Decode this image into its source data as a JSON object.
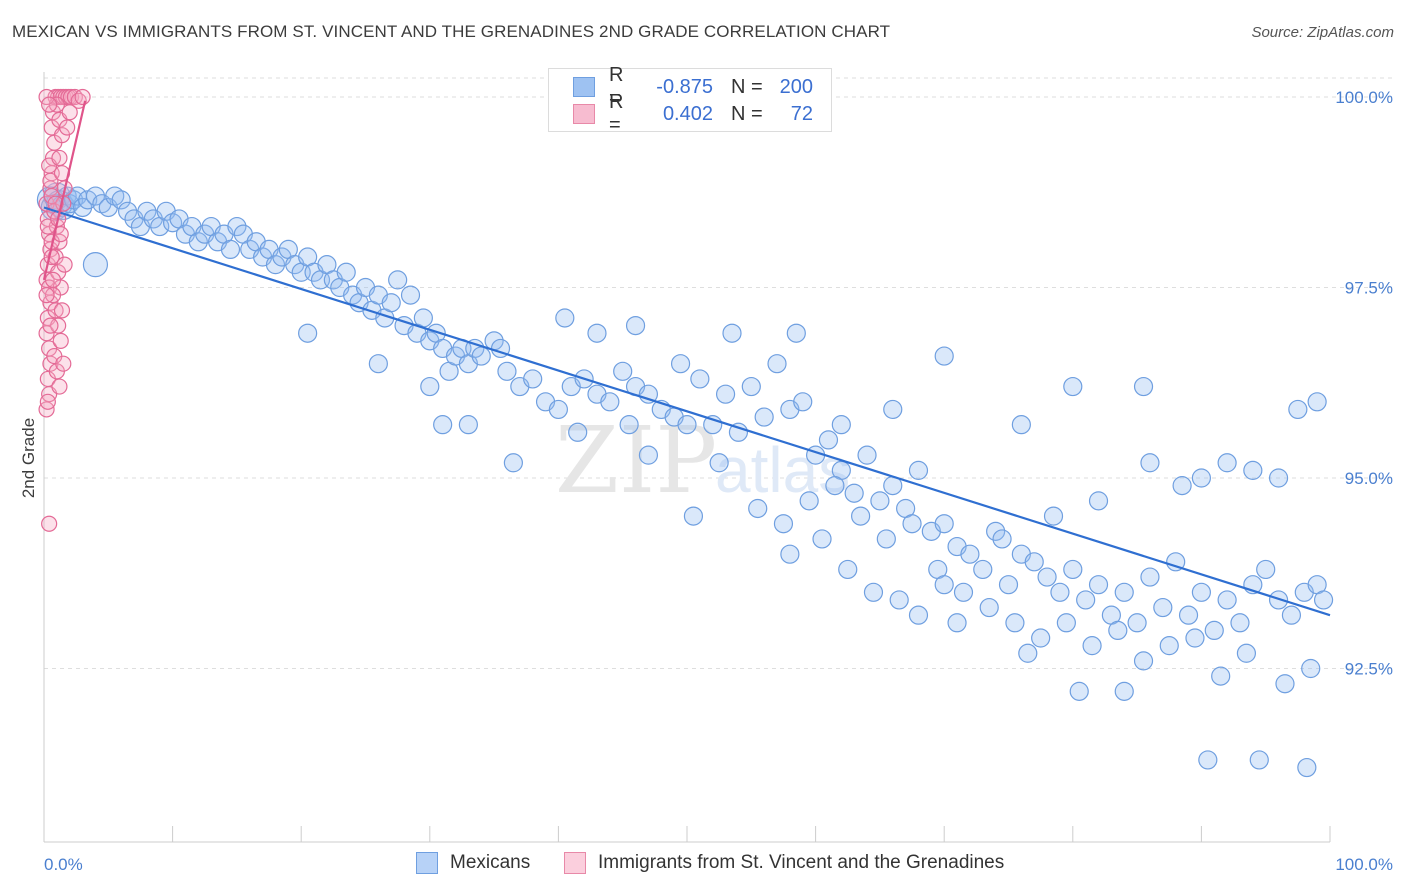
{
  "header": {
    "title": "MEXICAN VS IMMIGRANTS FROM ST. VINCENT AND THE GRENADINES 2ND GRADE CORRELATION CHART",
    "source": "Source: ZipAtlas.com"
  },
  "watermark": {
    "text_zip": "ZIP",
    "text_atlas": "atlas"
  },
  "legend": {
    "rows": [
      {
        "r_label": "R =",
        "r_value": "-0.875",
        "n_label": "N =",
        "n_value": "200",
        "color": "#9ec2f2",
        "border": "#6f9fe0"
      },
      {
        "r_label": "R =",
        "r_value": "0.402",
        "n_label": "N =",
        "n_value": "72",
        "color": "#f7bcd0",
        "border": "#e889a8"
      }
    ]
  },
  "bottom_legend": {
    "items": [
      {
        "label": "Mexicans",
        "color": "#b7d2f7",
        "border": "#6f9fe0"
      },
      {
        "label": "Immigrants from St. Vincent and the Grenadines",
        "color": "#fbcfdd",
        "border": "#e889a8"
      }
    ]
  },
  "chart_data": {
    "type": "scatter",
    "title": "MEXICAN VS IMMIGRANTS FROM ST. VINCENT AND THE GRENADINES 2ND GRADE CORRELATION CHART",
    "xlabel": "",
    "ylabel": "2nd Grade",
    "xlim": [
      0,
      100
    ],
    "ylim": [
      90.0,
      100.25
    ],
    "x_tick_labels": [
      "0.0%",
      "100.0%"
    ],
    "y_ticks": [
      92.5,
      95.0,
      97.5,
      100.0
    ],
    "y_tick_labels": [
      "92.5%",
      "95.0%",
      "97.5%",
      "100.0%"
    ],
    "grid": true,
    "legend_position": "top-center",
    "series": [
      {
        "name": "Mexicans",
        "color": "#6f9fe0",
        "fill": "rgba(150,190,240,0.35)",
        "trend": {
          "x": [
            0,
            100
          ],
          "y": [
            98.55,
            93.2
          ]
        },
        "points": [
          [
            0.5,
            98.65
          ],
          [
            0.8,
            98.55
          ],
          [
            1.0,
            98.7
          ],
          [
            1.2,
            98.6
          ],
          [
            1.5,
            98.55
          ],
          [
            1.8,
            98.7
          ],
          [
            2.0,
            98.6
          ],
          [
            2.3,
            98.65
          ],
          [
            2.6,
            98.7
          ],
          [
            3.0,
            98.55
          ],
          [
            3.4,
            98.65
          ],
          [
            4.0,
            98.7
          ],
          [
            4.5,
            98.6
          ],
          [
            5.0,
            98.55
          ],
          [
            5.5,
            98.7
          ],
          [
            6.0,
            98.65
          ],
          [
            6.5,
            98.5
          ],
          [
            7.0,
            98.4
          ],
          [
            7.5,
            98.3
          ],
          [
            8.0,
            98.5
          ],
          [
            8.5,
            98.4
          ],
          [
            9.0,
            98.3
          ],
          [
            9.5,
            98.5
          ],
          [
            10.0,
            98.35
          ],
          [
            10.5,
            98.4
          ],
          [
            11.0,
            98.2
          ],
          [
            11.5,
            98.3
          ],
          [
            12.0,
            98.1
          ],
          [
            12.5,
            98.2
          ],
          [
            13.0,
            98.3
          ],
          [
            13.5,
            98.1
          ],
          [
            14.0,
            98.2
          ],
          [
            14.5,
            98.0
          ],
          [
            15.0,
            98.3
          ],
          [
            15.5,
            98.2
          ],
          [
            16.0,
            98.0
          ],
          [
            16.5,
            98.1
          ],
          [
            17.0,
            97.9
          ],
          [
            17.5,
            98.0
          ],
          [
            18.0,
            97.8
          ],
          [
            18.5,
            97.9
          ],
          [
            19.0,
            98.0
          ],
          [
            19.5,
            97.8
          ],
          [
            20.0,
            97.7
          ],
          [
            20.5,
            97.9
          ],
          [
            21.0,
            97.7
          ],
          [
            21.5,
            97.6
          ],
          [
            22.0,
            97.8
          ],
          [
            22.5,
            97.6
          ],
          [
            23.0,
            97.5
          ],
          [
            23.5,
            97.7
          ],
          [
            24.0,
            97.4
          ],
          [
            24.5,
            97.3
          ],
          [
            25.0,
            97.5
          ],
          [
            25.5,
            97.2
          ],
          [
            26.0,
            97.4
          ],
          [
            26.5,
            97.1
          ],
          [
            27.0,
            97.3
          ],
          [
            27.5,
            97.6
          ],
          [
            28.0,
            97.0
          ],
          [
            28.5,
            97.4
          ],
          [
            29.0,
            96.9
          ],
          [
            29.5,
            97.1
          ],
          [
            30.0,
            96.8
          ],
          [
            30.5,
            96.9
          ],
          [
            31.0,
            96.7
          ],
          [
            31.5,
            96.4
          ],
          [
            32.0,
            96.6
          ],
          [
            32.5,
            96.7
          ],
          [
            33.0,
            96.5
          ],
          [
            33.5,
            96.7
          ],
          [
            34.0,
            96.6
          ],
          [
            35.0,
            96.8
          ],
          [
            35.5,
            96.7
          ],
          [
            36.0,
            96.4
          ],
          [
            37.0,
            96.2
          ],
          [
            38.0,
            96.3
          ],
          [
            39.0,
            96.0
          ],
          [
            40.0,
            95.9
          ],
          [
            41.0,
            96.2
          ],
          [
            42.0,
            96.3
          ],
          [
            43.0,
            96.1
          ],
          [
            44.0,
            96.0
          ],
          [
            45.0,
            96.4
          ],
          [
            46.0,
            96.2
          ],
          [
            47.0,
            96.1
          ],
          [
            48.0,
            95.9
          ],
          [
            49.0,
            95.8
          ],
          [
            50.0,
            95.7
          ],
          [
            51.0,
            96.3
          ],
          [
            52.0,
            95.7
          ],
          [
            53.0,
            96.1
          ],
          [
            54.0,
            95.6
          ],
          [
            55.0,
            96.2
          ],
          [
            56.0,
            95.8
          ],
          [
            57.0,
            96.5
          ],
          [
            58.0,
            95.9
          ],
          [
            59.0,
            96.0
          ],
          [
            60.0,
            95.3
          ],
          [
            61.0,
            95.5
          ],
          [
            62.0,
            95.1
          ],
          [
            63.0,
            94.8
          ],
          [
            64.0,
            95.3
          ],
          [
            65.0,
            94.7
          ],
          [
            66.0,
            94.9
          ],
          [
            67.0,
            94.6
          ],
          [
            68.0,
            95.1
          ],
          [
            69.0,
            94.3
          ],
          [
            70.0,
            94.4
          ],
          [
            71.0,
            94.1
          ],
          [
            72.0,
            94.0
          ],
          [
            73.0,
            93.8
          ],
          [
            74.0,
            94.3
          ],
          [
            75.0,
            93.6
          ],
          [
            76.0,
            94.0
          ],
          [
            77.0,
            93.9
          ],
          [
            78.0,
            93.7
          ],
          [
            79.0,
            93.5
          ],
          [
            80.0,
            93.8
          ],
          [
            81.0,
            93.4
          ],
          [
            82.0,
            93.6
          ],
          [
            83.0,
            93.2
          ],
          [
            84.0,
            93.5
          ],
          [
            85.0,
            93.1
          ],
          [
            86.0,
            93.7
          ],
          [
            87.0,
            93.3
          ],
          [
            88.0,
            93.9
          ],
          [
            89.0,
            93.2
          ],
          [
            90.0,
            93.5
          ],
          [
            91.0,
            93.0
          ],
          [
            92.0,
            93.4
          ],
          [
            93.0,
            93.1
          ],
          [
            94.0,
            93.6
          ],
          [
            95.0,
            93.8
          ],
          [
            96.0,
            93.4
          ],
          [
            97.0,
            93.2
          ],
          [
            98.0,
            93.5
          ],
          [
            99.0,
            93.6
          ],
          [
            99.5,
            93.4
          ],
          [
            20.5,
            96.9
          ],
          [
            26.0,
            96.5
          ],
          [
            30.0,
            96.2
          ],
          [
            31.0,
            95.7
          ],
          [
            33.0,
            95.7
          ],
          [
            36.5,
            95.2
          ],
          [
            41.5,
            95.6
          ],
          [
            45.5,
            95.7
          ],
          [
            47.0,
            95.3
          ],
          [
            50.5,
            94.5
          ],
          [
            52.5,
            95.2
          ],
          [
            55.5,
            94.6
          ],
          [
            57.5,
            94.4
          ],
          [
            59.5,
            94.7
          ],
          [
            61.5,
            94.9
          ],
          [
            63.5,
            94.5
          ],
          [
            65.5,
            94.2
          ],
          [
            67.5,
            94.4
          ],
          [
            69.5,
            93.8
          ],
          [
            71.5,
            93.5
          ],
          [
            73.5,
            93.3
          ],
          [
            75.5,
            93.1
          ],
          [
            77.5,
            92.9
          ],
          [
            79.5,
            93.1
          ],
          [
            81.5,
            92.8
          ],
          [
            83.5,
            93.0
          ],
          [
            85.5,
            92.6
          ],
          [
            87.5,
            92.8
          ],
          [
            89.5,
            92.9
          ],
          [
            91.5,
            92.4
          ],
          [
            93.5,
            92.7
          ],
          [
            96.5,
            92.3
          ],
          [
            98.5,
            92.5
          ],
          [
            90.5,
            91.3
          ],
          [
            94.5,
            91.3
          ],
          [
            98.2,
            91.2
          ],
          [
            80.5,
            92.2
          ],
          [
            84.0,
            92.2
          ],
          [
            76.5,
            92.7
          ],
          [
            71.0,
            93.1
          ],
          [
            60.5,
            94.2
          ],
          [
            58.0,
            94.0
          ],
          [
            62.5,
            93.8
          ],
          [
            64.5,
            93.5
          ],
          [
            66.5,
            93.4
          ],
          [
            68.0,
            93.2
          ],
          [
            70.0,
            93.6
          ],
          [
            74.5,
            94.2
          ],
          [
            78.5,
            94.5
          ],
          [
            82.0,
            94.7
          ],
          [
            86.0,
            95.2
          ],
          [
            88.5,
            94.9
          ],
          [
            90.0,
            95.0
          ],
          [
            92.0,
            95.2
          ],
          [
            94.0,
            95.1
          ],
          [
            96.0,
            95.0
          ],
          [
            97.5,
            95.9
          ],
          [
            99.0,
            96.0
          ],
          [
            85.5,
            96.2
          ],
          [
            80.0,
            96.2
          ],
          [
            76.0,
            95.7
          ],
          [
            70.0,
            96.6
          ],
          [
            66.0,
            95.9
          ],
          [
            62.0,
            95.7
          ],
          [
            58.5,
            96.9
          ],
          [
            53.5,
            96.9
          ],
          [
            49.5,
            96.5
          ],
          [
            46.0,
            97.0
          ],
          [
            43.0,
            96.9
          ],
          [
            40.5,
            97.1
          ]
        ]
      },
      {
        "name": "Immigrants from St. Vincent and the Grenadines",
        "color": "#e46a96",
        "fill": "rgba(245,170,196,0.35)",
        "trend": {
          "x": [
            0.0,
            3.2
          ],
          "y": [
            97.6,
            99.95
          ]
        },
        "points": [
          [
            0.2,
            98.6
          ],
          [
            0.3,
            98.4
          ],
          [
            0.4,
            98.2
          ],
          [
            0.5,
            98.0
          ],
          [
            0.3,
            97.8
          ],
          [
            0.2,
            97.6
          ],
          [
            0.4,
            97.5
          ],
          [
            0.5,
            97.3
          ],
          [
            0.3,
            97.1
          ],
          [
            0.2,
            96.9
          ],
          [
            0.4,
            96.7
          ],
          [
            0.5,
            96.5
          ],
          [
            0.3,
            96.3
          ],
          [
            0.4,
            96.1
          ],
          [
            0.2,
            95.9
          ],
          [
            0.5,
            98.8
          ],
          [
            0.6,
            99.0
          ],
          [
            0.7,
            99.2
          ],
          [
            0.8,
            99.4
          ],
          [
            0.6,
            99.6
          ],
          [
            0.7,
            99.8
          ],
          [
            0.9,
            100.0
          ],
          [
            1.1,
            100.0
          ],
          [
            1.3,
            100.0
          ],
          [
            1.5,
            100.0
          ],
          [
            1.7,
            100.0
          ],
          [
            1.9,
            100.0
          ],
          [
            2.1,
            100.0
          ],
          [
            2.4,
            100.0
          ],
          [
            2.7,
            99.95
          ],
          [
            3.0,
            100.0
          ],
          [
            1.0,
            99.9
          ],
          [
            1.2,
            99.7
          ],
          [
            1.4,
            99.5
          ],
          [
            0.8,
            98.5
          ],
          [
            1.0,
            98.3
          ],
          [
            1.2,
            98.1
          ],
          [
            0.9,
            97.9
          ],
          [
            1.1,
            97.7
          ],
          [
            1.3,
            97.5
          ],
          [
            0.7,
            97.4
          ],
          [
            0.9,
            97.2
          ],
          [
            1.1,
            97.0
          ],
          [
            1.3,
            96.8
          ],
          [
            0.8,
            96.6
          ],
          [
            1.0,
            96.4
          ],
          [
            1.2,
            96.2
          ],
          [
            0.6,
            98.7
          ],
          [
            0.5,
            98.9
          ],
          [
            0.4,
            99.1
          ],
          [
            1.5,
            98.6
          ],
          [
            1.6,
            98.8
          ],
          [
            1.4,
            99.0
          ],
          [
            1.2,
            99.2
          ],
          [
            0.3,
            98.3
          ],
          [
            0.6,
            97.9
          ],
          [
            0.2,
            97.4
          ],
          [
            0.5,
            97.0
          ],
          [
            1.6,
            97.8
          ],
          [
            1.4,
            97.2
          ],
          [
            1.5,
            96.5
          ],
          [
            0.4,
            94.4
          ],
          [
            1.8,
            99.6
          ],
          [
            2.0,
            99.8
          ],
          [
            0.2,
            100.0
          ],
          [
            0.4,
            99.9
          ],
          [
            0.6,
            98.1
          ],
          [
            0.9,
            98.6
          ],
          [
            1.1,
            98.4
          ],
          [
            1.3,
            98.2
          ],
          [
            0.7,
            97.6
          ],
          [
            0.3,
            96.0
          ]
        ]
      }
    ]
  }
}
